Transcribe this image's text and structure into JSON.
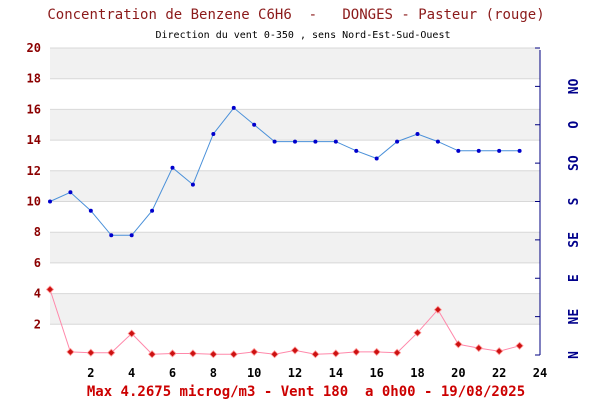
{
  "chart_data": {
    "type": "line",
    "title": "Concentration de Benzene C6H6  -   DONGES - Pasteur (rouge)",
    "subtitle": "Direction du vent 0-350 , sens Nord-Est-Sud-Ouest",
    "footer": "Max 4.2675 microg/m3 - Vent 180  a 0h00 - 19/08/2025",
    "xlim": [
      0,
      24
    ],
    "ylim": [
      0,
      20
    ],
    "x_ticks": [
      2,
      4,
      6,
      8,
      10,
      12,
      14,
      16,
      18,
      20,
      22,
      24
    ],
    "y_ticks": [
      2,
      4,
      6,
      8,
      10,
      12,
      14,
      16,
      18,
      20
    ],
    "direction_axis": {
      "range": [
        0,
        360
      ],
      "labels": [
        "N",
        "NE",
        "E",
        "SE",
        "S",
        "SO",
        "O",
        "NO"
      ]
    },
    "grid": true,
    "series": [
      {
        "values": [
          10.0,
          10.6,
          9.4,
          7.8,
          7.8,
          9.4,
          12.2,
          11.1,
          14.4,
          16.1,
          15.0,
          13.9,
          13.9,
          13.9,
          13.9,
          13.3,
          12.8,
          13.9,
          14.4,
          13.9,
          13.3,
          13.3,
          13.3,
          13.3
        ],
        "x": [
          0,
          1,
          2,
          3,
          4,
          5,
          6,
          7,
          8,
          9,
          10,
          11,
          12,
          13,
          14,
          15,
          16,
          17,
          18,
          19,
          20,
          21,
          22,
          23
        ],
        "color": "#4a90d9",
        "marker_color": "#0000cc",
        "axis": "direction"
      },
      {
        "values": [
          4.27,
          0.2,
          0.15,
          0.15,
          1.4,
          0.05,
          0.1,
          0.1,
          0.05,
          0.05,
          0.2,
          0.05,
          0.3,
          0.05,
          0.1,
          0.2,
          0.2,
          0.15,
          1.45,
          2.95,
          0.7,
          0.45,
          0.25,
          0.6
        ],
        "x": [
          0,
          1,
          2,
          3,
          4,
          5,
          6,
          7,
          8,
          9,
          10,
          11,
          12,
          13,
          14,
          15,
          16,
          17,
          18,
          19,
          20,
          21,
          22,
          23
        ],
        "color": "#ff88aa",
        "marker_color": "#cc1111",
        "axis": "concentration"
      }
    ]
  },
  "colors": {
    "band": "#f1f1f1",
    "gridline": "#d8d8d8",
    "axis_line": "#000080"
  }
}
